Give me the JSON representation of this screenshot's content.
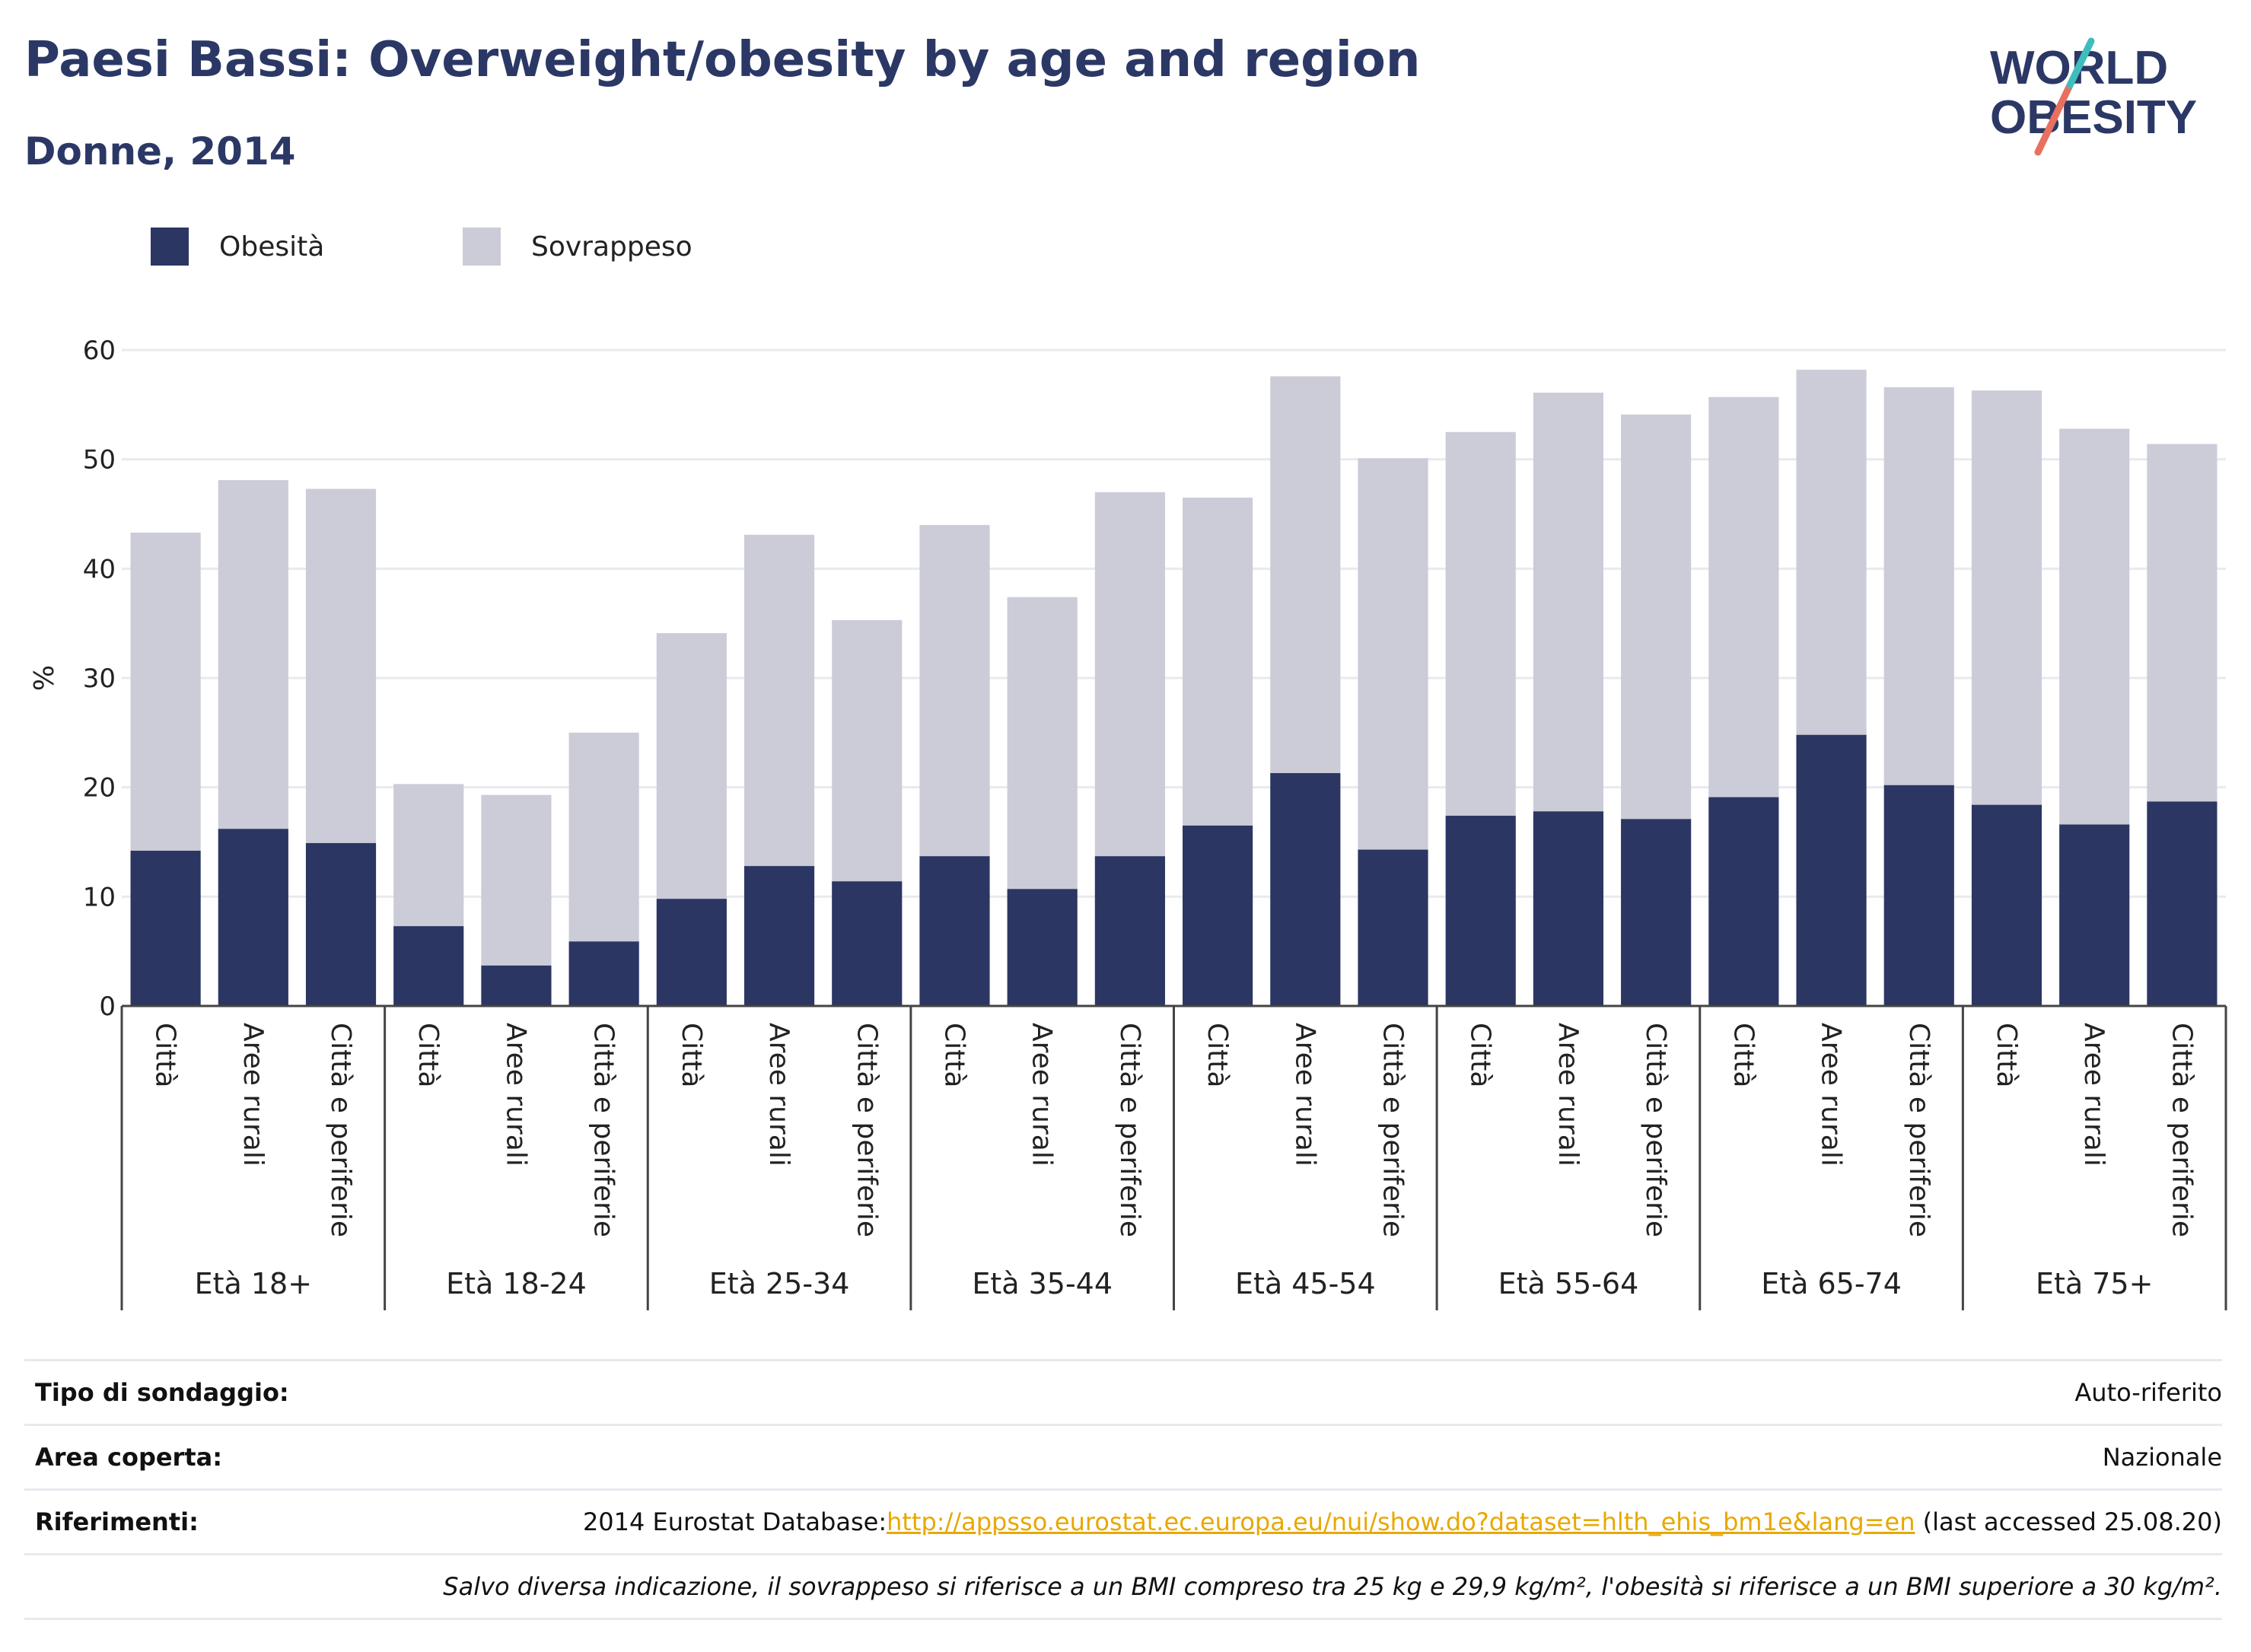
{
  "header": {
    "title": "Paesi Bassi: Overweight/obesity by age and region",
    "subtitle": "Donne, 2014"
  },
  "logo": {
    "line1": "WORLD",
    "line2": "OBESITY"
  },
  "colors": {
    "obesity": "#2b3663",
    "overweight": "#cbccd8",
    "title": "#2b3866",
    "link": "#e8a800"
  },
  "chart_data": {
    "type": "bar",
    "stacked": true,
    "ylabel": "%",
    "ylim": [
      0,
      60
    ],
    "yticks": [
      0,
      10,
      20,
      30,
      40,
      50,
      60
    ],
    "grid": true,
    "legend_position": "top-left",
    "groups": [
      "Età 18+",
      "Età 18-24",
      "Età 25-34",
      "Età 35-44",
      "Età 45-54",
      "Età 55-64",
      "Età 65-74",
      "Età 75+"
    ],
    "subcategories": [
      "Città",
      "Aree rurali",
      "Città e periferie"
    ],
    "series": [
      {
        "name": "Obesità",
        "values": [
          14.2,
          16.2,
          14.9,
          7.3,
          3.7,
          5.9,
          9.8,
          12.8,
          11.4,
          13.7,
          10.7,
          13.7,
          16.5,
          21.3,
          14.3,
          17.4,
          17.8,
          17.1,
          19.1,
          24.8,
          20.2,
          18.4,
          16.6,
          18.7
        ]
      },
      {
        "name": "Sovrappeso",
        "values": [
          29.1,
          31.9,
          32.4,
          13.0,
          15.6,
          19.1,
          24.3,
          30.3,
          23.9,
          30.3,
          26.7,
          33.3,
          30.0,
          36.3,
          35.8,
          35.1,
          38.3,
          37.0,
          36.6,
          33.4,
          36.4,
          37.9,
          36.2,
          32.7
        ]
      }
    ]
  },
  "footer": {
    "survey_label": "Tipo di sondaggio:",
    "survey_value": "Auto-riferito",
    "area_label": "Area coperta:",
    "area_value": "Nazionale",
    "ref_label": "Riferimenti:",
    "ref_prefix": "2014 Eurostat Database:",
    "ref_link": "http://appsso.eurostat.ec.europa.eu/nui/show.do?dataset=hlth_ehis_bm1e&lang=en",
    "ref_suffix": " (last accessed 25.08.20)",
    "note": "Salvo diversa indicazione, il sovrappeso si riferisce a un BMI compreso tra 25 kg e 29,9 kg/m², l'obesità si riferisce a un BMI superiore a 30 kg/m²."
  }
}
